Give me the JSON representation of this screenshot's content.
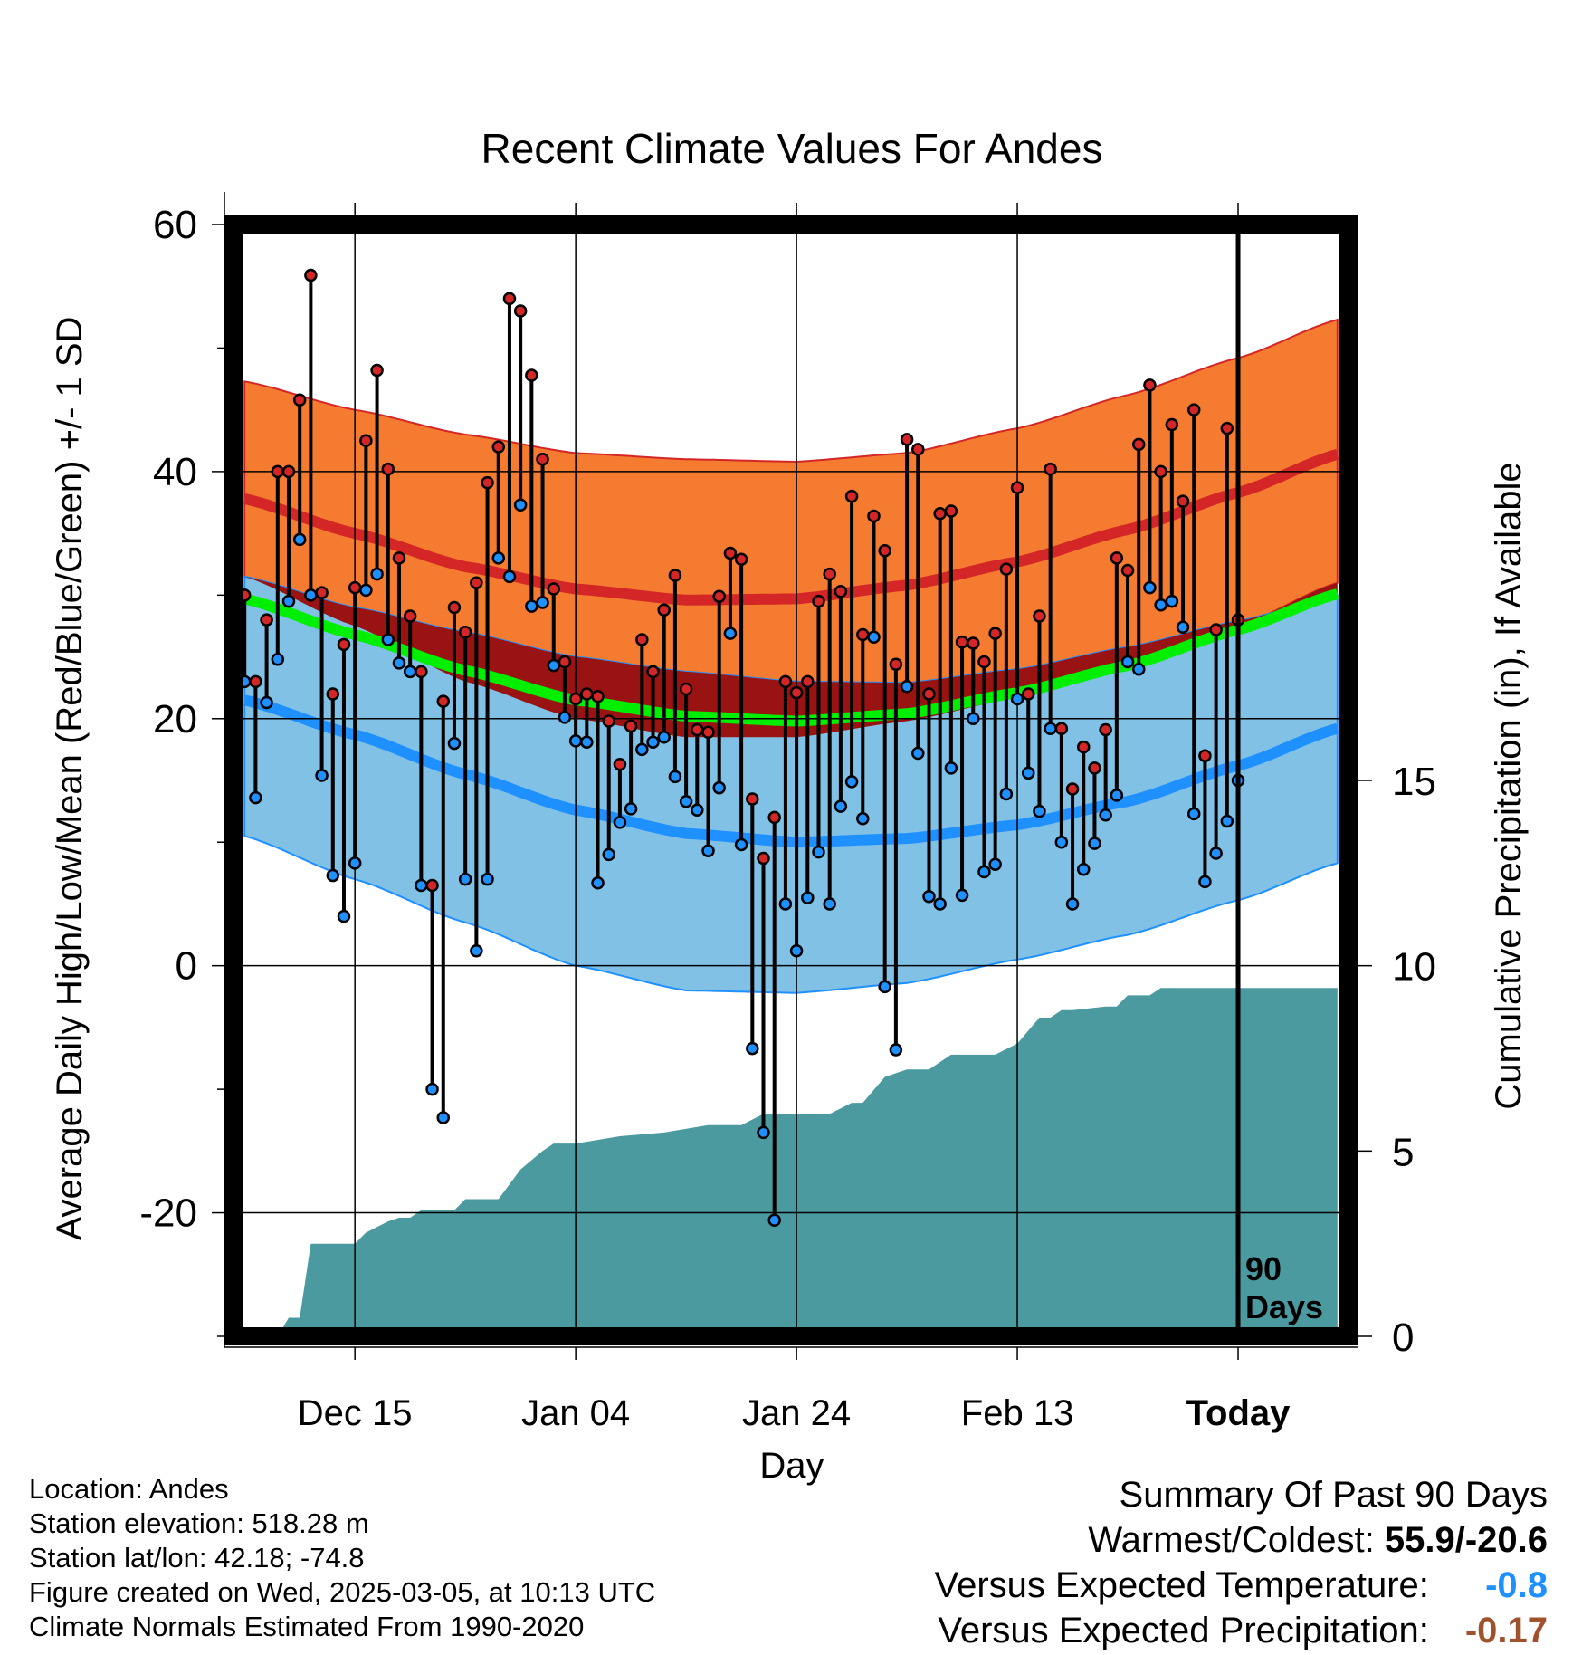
{
  "chart_data": {
    "type": "line",
    "title": "Recent Climate Values For Andes",
    "xlabel": "Day",
    "ylabel": "Average Daily High/Low/Mean (Red/Blue/Green) +/- 1 SD",
    "y2label": "Cumulative Precipitation (in), If Available",
    "ylim": [
      -30,
      60
    ],
    "y2lim": [
      0,
      30
    ],
    "xlim": [
      -1,
      100
    ],
    "yticks": [
      60,
      40,
      20,
      0,
      -20
    ],
    "y2ticks": [
      15,
      10,
      5,
      0
    ],
    "x_tick_positions": [
      10,
      30,
      50,
      70,
      90
    ],
    "x_tick_labels": [
      "Dec 15",
      "Jan 04",
      "Jan 24",
      "Feb 13",
      "Today"
    ],
    "today_marker": {
      "x": 90,
      "label_line1": "90",
      "label_line2": "Days"
    },
    "normals": {
      "x": [
        0,
        10,
        20,
        30,
        40,
        50,
        60,
        70,
        80,
        90,
        99
      ],
      "high_upper": [
        47.3,
        45.0,
        43.0,
        41.5,
        41.0,
        40.8,
        41.5,
        43.5,
        46.2,
        49.2,
        52.3
      ],
      "high_mean": [
        37.8,
        35.0,
        32.3,
        30.5,
        29.6,
        29.7,
        30.8,
        32.7,
        35.3,
        38.3,
        41.4
      ],
      "high_lower": [
        31.5,
        27.5,
        23.0,
        20.0,
        18.5,
        18.5,
        19.8,
        21.7,
        24.3,
        27.5,
        31.0
      ],
      "low_upper": [
        31.5,
        29.0,
        27.0,
        25.0,
        23.8,
        23.0,
        22.9,
        24.0,
        25.8,
        27.9,
        30.0
      ],
      "low_mean": [
        21.5,
        18.7,
        15.5,
        12.6,
        10.7,
        10.0,
        10.3,
        11.4,
        13.3,
        16.2,
        19.2
      ],
      "low_lower": [
        10.5,
        7.0,
        3.5,
        0.0,
        -2.0,
        -2.2,
        -1.4,
        0.5,
        2.5,
        5.3,
        8.3
      ],
      "mean": [
        29.7,
        26.8,
        23.9,
        21.5,
        20.2,
        19.8,
        20.4,
        22.1,
        24.3,
        27.2,
        30.1
      ]
    },
    "observed": {
      "x": [
        0,
        1,
        2,
        3,
        4,
        5,
        6,
        7,
        8,
        9,
        10,
        11,
        12,
        13,
        14,
        15,
        16,
        17,
        18,
        19,
        20,
        21,
        22,
        23,
        24,
        25,
        26,
        27,
        28,
        29,
        30,
        31,
        32,
        33,
        34,
        35,
        36,
        37,
        38,
        39,
        40,
        41,
        42,
        43,
        44,
        45,
        46,
        47,
        48,
        49,
        50,
        51,
        52,
        53,
        54,
        55,
        56,
        57,
        58,
        59,
        60,
        61,
        62,
        63,
        64,
        65,
        66,
        67,
        68,
        69,
        70,
        71,
        72,
        73,
        74,
        75,
        76,
        77,
        78,
        79,
        80,
        81,
        82,
        83,
        84,
        85,
        86,
        87,
        88,
        89,
        90
      ],
      "high": [
        30.0,
        23.0,
        28.0,
        40.0,
        40.0,
        45.8,
        55.9,
        30.2,
        22.0,
        26.0,
        30.6,
        42.5,
        48.2,
        40.2,
        33.0,
        28.3,
        23.8,
        6.5,
        21.4,
        29.0,
        27.0,
        31.0,
        39.1,
        42.0,
        54.0,
        53.0,
        47.8,
        41.0,
        30.5,
        24.6,
        21.6,
        22.0,
        21.8,
        19.8,
        16.3,
        19.4,
        26.4,
        23.8,
        28.8,
        31.6,
        22.4,
        19.1,
        18.9,
        29.9,
        33.4,
        32.9,
        13.5,
        8.7,
        12.0,
        23.0,
        22.1,
        23.0,
        29.5,
        31.7,
        30.3,
        38.0,
        26.8,
        36.4,
        33.6,
        24.4,
        42.6,
        41.8,
        22.0,
        36.6,
        36.8,
        26.2,
        26.1,
        24.6,
        26.9,
        32.1,
        38.7,
        22.0,
        28.3,
        40.2,
        19.2,
        14.3,
        17.7,
        16.0,
        19.1,
        33.0,
        32.0,
        42.2,
        47.0,
        40.0,
        43.8,
        37.6,
        45.0,
        17.0,
        27.2,
        43.5,
        28.0
      ],
      "low": [
        23.0,
        13.6,
        21.3,
        24.8,
        29.5,
        34.5,
        30.0,
        15.4,
        7.3,
        4.0,
        8.3,
        30.4,
        31.7,
        26.4,
        24.5,
        23.8,
        6.5,
        -10.0,
        -12.3,
        18.0,
        7.0,
        1.2,
        7.0,
        33.0,
        31.5,
        37.3,
        29.1,
        29.4,
        24.3,
        20.1,
        18.2,
        18.1,
        6.7,
        9.0,
        11.6,
        12.7,
        17.5,
        18.1,
        18.5,
        15.3,
        13.3,
        12.6,
        9.3,
        14.4,
        26.9,
        9.8,
        -6.7,
        -13.5,
        -20.6,
        5.0,
        1.2,
        5.5,
        9.2,
        5.0,
        12.9,
        14.9,
        11.9,
        26.6,
        -1.7,
        -6.8,
        22.6,
        17.2,
        5.6,
        5.0,
        16.0,
        5.7,
        20.0,
        7.6,
        8.2,
        13.9,
        21.6,
        15.6,
        12.5,
        19.2,
        10.0,
        5.0,
        7.8,
        9.9,
        12.2,
        13.8,
        24.6,
        24.0,
        30.6,
        29.2,
        29.5,
        27.4,
        12.3,
        6.8,
        9.1,
        11.7,
        15.0
      ]
    },
    "precipitation": {
      "x": [
        3,
        4,
        5,
        6,
        10,
        11,
        13,
        14,
        15,
        16,
        18,
        19,
        20,
        21,
        23,
        25,
        27,
        28,
        30,
        34,
        38,
        42,
        45,
        47,
        48,
        50,
        52,
        53,
        55,
        56,
        58,
        60,
        62,
        64,
        66,
        68,
        70,
        72,
        73,
        74,
        75,
        78,
        79,
        80,
        82,
        83,
        84,
        86,
        90,
        99
      ],
      "cumulative": [
        0.0,
        0.5,
        0.5,
        2.5,
        2.5,
        2.8,
        3.1,
        3.2,
        3.2,
        3.4,
        3.4,
        3.4,
        3.7,
        3.7,
        3.7,
        4.5,
        5.0,
        5.2,
        5.2,
        5.4,
        5.5,
        5.7,
        5.7,
        6.0,
        6.0,
        6.0,
        6.0,
        6.0,
        6.3,
        6.3,
        7.0,
        7.2,
        7.2,
        7.6,
        7.6,
        7.6,
        7.9,
        8.6,
        8.6,
        8.8,
        8.8,
        8.9,
        8.9,
        9.2,
        9.2,
        9.4,
        9.4,
        9.4,
        9.4,
        9.4
      ]
    },
    "colors": {
      "high_band": "#f47b30",
      "high_mean": "#d42626",
      "low_band": "#82c1e6",
      "low_mean": "#1e90ff",
      "low_band_edge": "#1e90ff",
      "overlap_band": "#991313",
      "mean_line": "#00ee00",
      "precip": "#4a9aa0",
      "high_point": "#d42626",
      "low_point": "#1e90ff"
    }
  },
  "info": {
    "location": "Location: Andes",
    "elevation": "Station elevation: 518.28 m",
    "latlon": "Station lat/lon: 42.18; -74.8",
    "created": "Figure created on Wed, 2025-03-05, at 10:13 UTC",
    "normals": "Climate Normals Estimated From 1990-2020"
  },
  "summary": {
    "heading": "Summary Of Past 90 Days",
    "warm_cold_label": "Warmest/Coldest:",
    "warm_cold_value": "55.9/-20.6",
    "temp_label": "Versus Expected Temperature:",
    "temp_value": "-0.8",
    "temp_color": "#1e90ff",
    "precip_label": "Versus Expected Precipitation:",
    "precip_value": "-0.17",
    "precip_color": "#a0522d"
  }
}
